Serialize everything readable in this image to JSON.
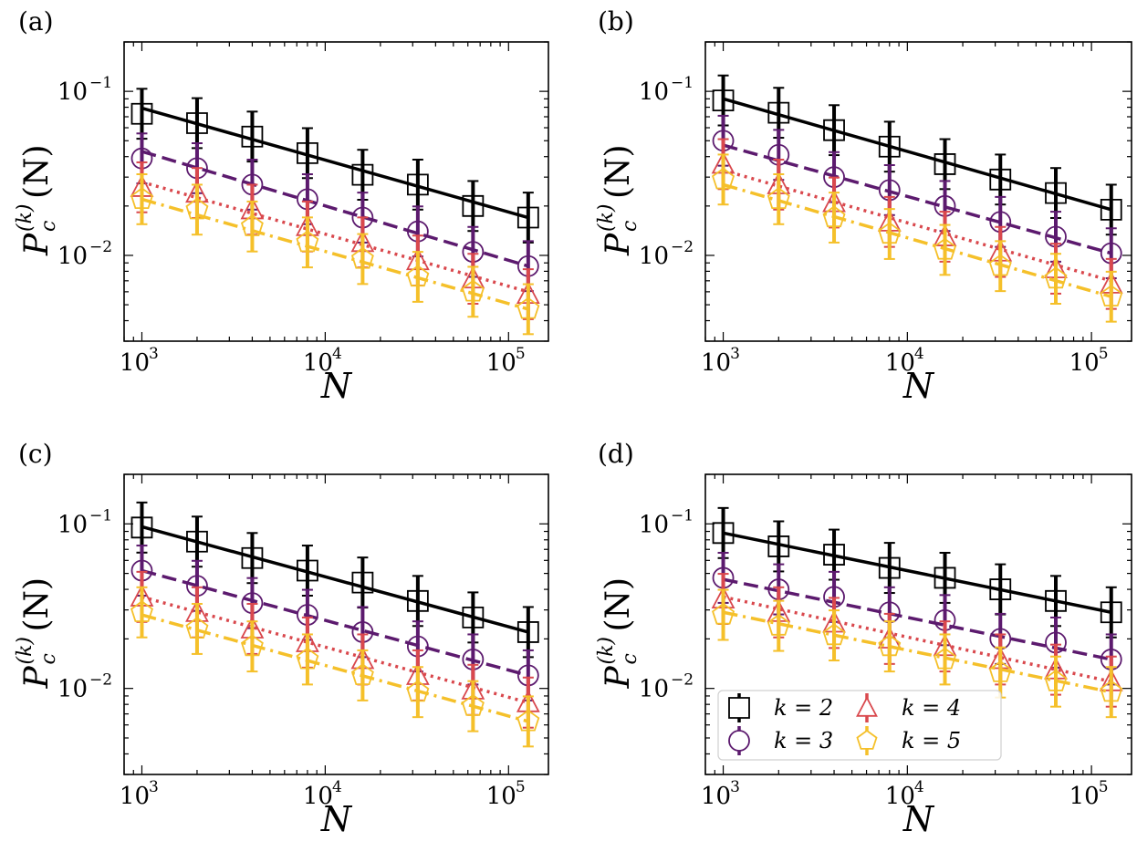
{
  "figure": {
    "ylabel_parts": {
      "P": "P",
      "c": "c",
      "k": "(k)",
      "arg": "(N)"
    },
    "xlabel": "N",
    "x_ticks": [
      {
        "base": "10",
        "exp": "3"
      },
      {
        "base": "10",
        "exp": "4"
      },
      {
        "base": "10",
        "exp": "5"
      }
    ],
    "y_ticks": [
      {
        "base": "10",
        "exp": "−1"
      },
      {
        "base": "10",
        "exp": "−2"
      }
    ],
    "legend": {
      "items": [
        "k = 2",
        "k = 3",
        "k = 4",
        "k = 5"
      ],
      "location": "lower-left",
      "panel": "d"
    }
  },
  "series_style": [
    {
      "name": "k = 2",
      "color": "#000000",
      "marker": "square",
      "line": "solid"
    },
    {
      "name": "k = 3",
      "color": "#5c1a6e",
      "marker": "circle",
      "line": "dashed"
    },
    {
      "name": "k = 4",
      "color": "#d9484d",
      "marker": "triangle",
      "line": "dotted"
    },
    {
      "name": "k = 5",
      "color": "#f5c02a",
      "marker": "pentagon",
      "line": "dashdot"
    }
  ],
  "chart_data": [
    {
      "type": "scatter",
      "panel": "(a)",
      "xscale": "log",
      "yscale": "log",
      "xlim": [
        800,
        165000
      ],
      "ylim": [
        0.003,
        0.2
      ],
      "x": [
        1000,
        2000,
        4000,
        8000,
        16000,
        32000,
        64000,
        128000
      ],
      "series": [
        {
          "name": "k = 2",
          "values": [
            0.073,
            0.064,
            0.053,
            0.042,
            0.031,
            0.027,
            0.02,
            0.017
          ],
          "fit": [
            0.079,
            0.017
          ]
        },
        {
          "name": "k = 3",
          "values": [
            0.039,
            0.034,
            0.027,
            0.022,
            0.017,
            0.014,
            0.0105,
            0.0086
          ],
          "fit": [
            0.043,
            0.0086
          ]
        },
        {
          "name": "k = 4",
          "values": [
            0.026,
            0.024,
            0.019,
            0.015,
            0.012,
            0.0093,
            0.0072,
            0.0058
          ],
          "fit": [
            0.028,
            0.006
          ]
        },
        {
          "name": "k = 5",
          "values": [
            0.022,
            0.019,
            0.015,
            0.012,
            0.0095,
            0.0074,
            0.006,
            0.0047
          ],
          "fit": [
            0.022,
            0.0047
          ]
        }
      ]
    },
    {
      "type": "scatter",
      "panel": "(b)",
      "xscale": "log",
      "yscale": "log",
      "xlim": [
        800,
        165000
      ],
      "ylim": [
        0.003,
        0.2
      ],
      "x": [
        1000,
        2000,
        4000,
        8000,
        16000,
        32000,
        64000,
        128000
      ],
      "series": [
        {
          "name": "k = 2",
          "values": [
            0.088,
            0.074,
            0.058,
            0.046,
            0.036,
            0.029,
            0.024,
            0.019
          ],
          "fit": [
            0.09,
            0.019
          ]
        },
        {
          "name": "k = 3",
          "values": [
            0.05,
            0.041,
            0.03,
            0.025,
            0.02,
            0.016,
            0.013,
            0.0103
          ],
          "fit": [
            0.047,
            0.0103
          ]
        },
        {
          "name": "k = 4",
          "values": [
            0.036,
            0.027,
            0.021,
            0.016,
            0.013,
            0.0105,
            0.0083,
            0.0067
          ],
          "fit": [
            0.033,
            0.007
          ]
        },
        {
          "name": "k = 5",
          "values": [
            0.029,
            0.022,
            0.017,
            0.0135,
            0.0108,
            0.0086,
            0.0072,
            0.0056
          ],
          "fit": [
            0.027,
            0.0056
          ]
        }
      ]
    },
    {
      "type": "scatter",
      "panel": "(c)",
      "xscale": "log",
      "yscale": "log",
      "xlim": [
        800,
        165000
      ],
      "ylim": [
        0.003,
        0.2
      ],
      "x": [
        1000,
        2000,
        4000,
        8000,
        16000,
        32000,
        64000,
        128000
      ],
      "series": [
        {
          "name": "k = 2",
          "values": [
            0.095,
            0.078,
            0.062,
            0.052,
            0.044,
            0.034,
            0.027,
            0.022
          ],
          "fit": [
            0.096,
            0.022
          ]
        },
        {
          "name": "k = 3",
          "values": [
            0.052,
            0.042,
            0.033,
            0.028,
            0.022,
            0.018,
            0.015,
            0.012
          ],
          "fit": [
            0.052,
            0.012
          ]
        },
        {
          "name": "k = 4",
          "values": [
            0.036,
            0.029,
            0.023,
            0.019,
            0.015,
            0.012,
            0.0098,
            0.0082
          ],
          "fit": [
            0.036,
            0.0082
          ]
        },
        {
          "name": "k = 5",
          "values": [
            0.029,
            0.023,
            0.018,
            0.015,
            0.012,
            0.0095,
            0.0078,
            0.0063
          ],
          "fit": [
            0.028,
            0.0063
          ]
        }
      ]
    },
    {
      "type": "scatter",
      "panel": "(d)",
      "xscale": "log",
      "yscale": "log",
      "xlim": [
        800,
        165000
      ],
      "ylim": [
        0.003,
        0.2
      ],
      "x": [
        1000,
        2000,
        4000,
        8000,
        16000,
        32000,
        64000,
        128000
      ],
      "series": [
        {
          "name": "k = 2",
          "values": [
            0.088,
            0.073,
            0.065,
            0.054,
            0.047,
            0.04,
            0.034,
            0.029
          ],
          "fit": [
            0.088,
            0.029
          ]
        },
        {
          "name": "k = 3",
          "values": [
            0.047,
            0.04,
            0.036,
            0.029,
            0.026,
            0.02,
            0.019,
            0.015
          ],
          "fit": [
            0.046,
            0.015
          ]
        },
        {
          "name": "k = 4",
          "values": [
            0.035,
            0.029,
            0.025,
            0.02,
            0.018,
            0.015,
            0.013,
            0.011
          ],
          "fit": [
            0.036,
            0.011
          ]
        },
        {
          "name": "k = 5",
          "values": [
            0.028,
            0.024,
            0.021,
            0.018,
            0.015,
            0.0125,
            0.011,
            0.0095
          ],
          "fit": [
            0.029,
            0.0095
          ]
        }
      ]
    }
  ]
}
